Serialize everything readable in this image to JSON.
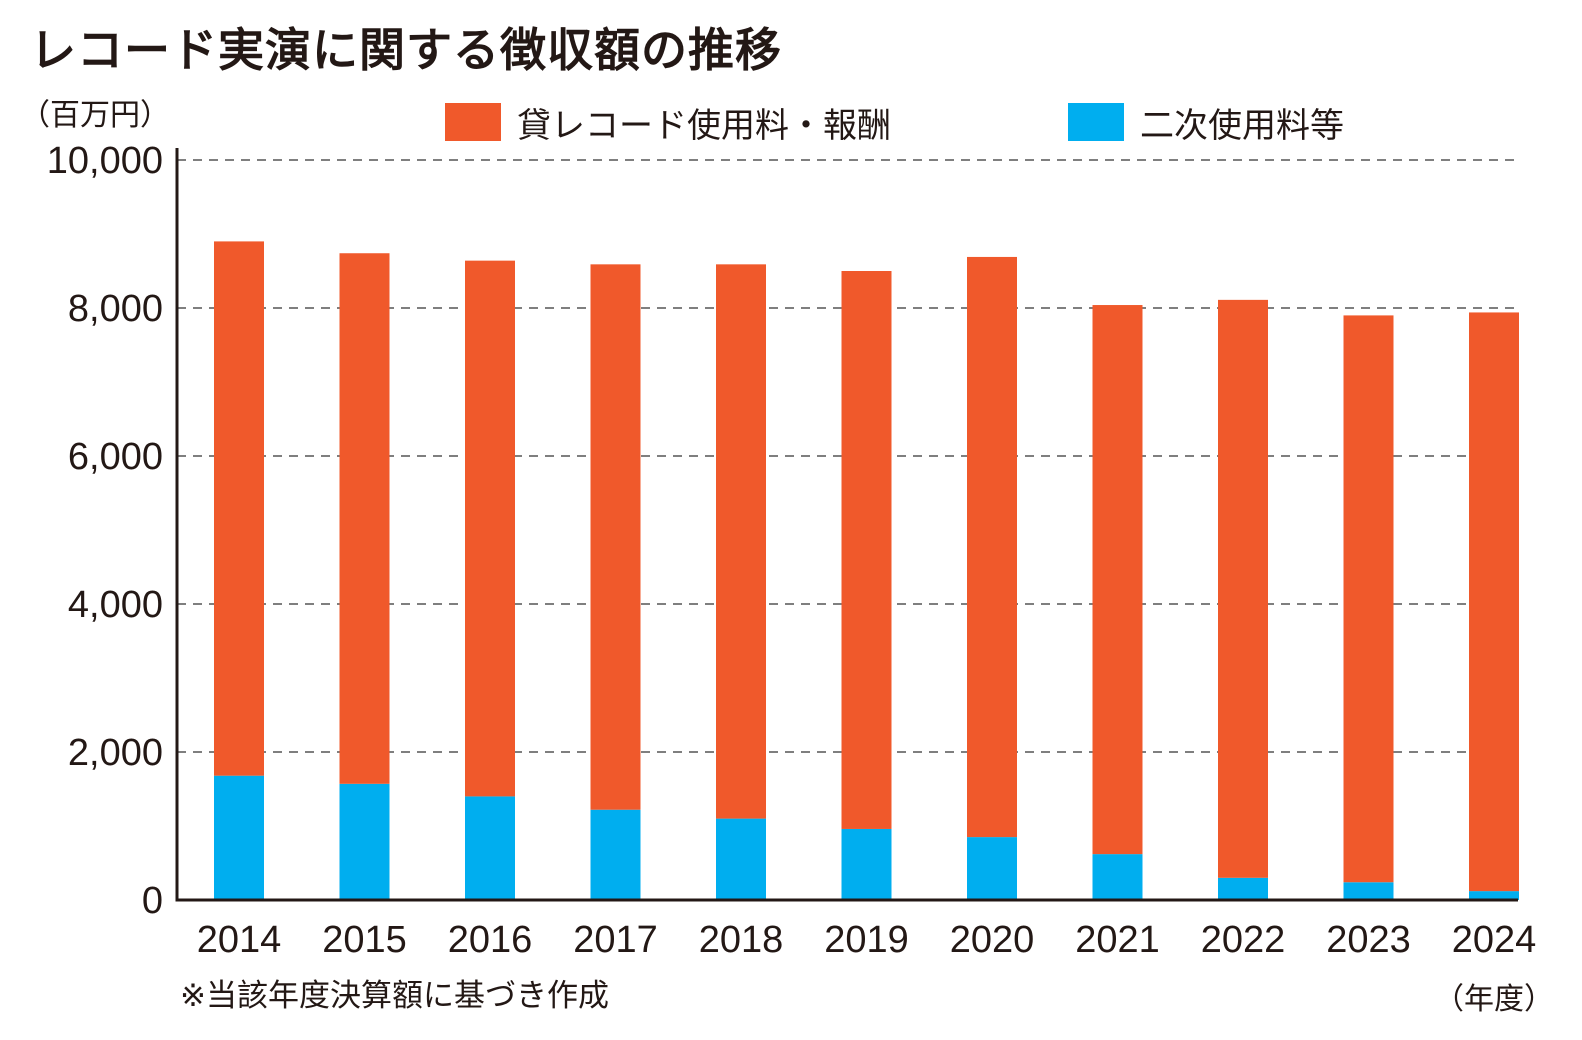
{
  "title": "レコード実演に関する徴収額の推移",
  "unit_label": "（百万円）",
  "footnote": "※当該年度決算額に基づき作成",
  "x_unit": "（年度）",
  "colors": {
    "rental": "#F0592B",
    "secondary": "#00AEEF",
    "grid": "#555555",
    "axis": "#231815"
  },
  "legend": [
    {
      "label": "貸レコード使用料・報酬",
      "color": "#F0592B"
    },
    {
      "label": "二次使用料等",
      "color": "#00AEEF"
    }
  ],
  "chart_data": {
    "type": "bar",
    "stacked": true,
    "categories": [
      "2014",
      "2015",
      "2016",
      "2017",
      "2018",
      "2019",
      "2020",
      "2021",
      "2022",
      "2023",
      "2024"
    ],
    "series": [
      {
        "name": "二次使用料等",
        "values": [
          1680,
          1570,
          1400,
          1220,
          1100,
          960,
          850,
          620,
          300,
          240,
          120
        ]
      },
      {
        "name": "貸レコード使用料・報酬",
        "values": [
          7220,
          7170,
          7240,
          7370,
          7490,
          7540,
          7840,
          7420,
          7810,
          7660,
          7820
        ]
      }
    ],
    "yticks": [
      "0",
      "2,000",
      "4,000",
      "6,000",
      "8,000",
      "10,000"
    ],
    "ylim": [
      0,
      10000
    ],
    "grid": true,
    "legend_position": "top"
  }
}
